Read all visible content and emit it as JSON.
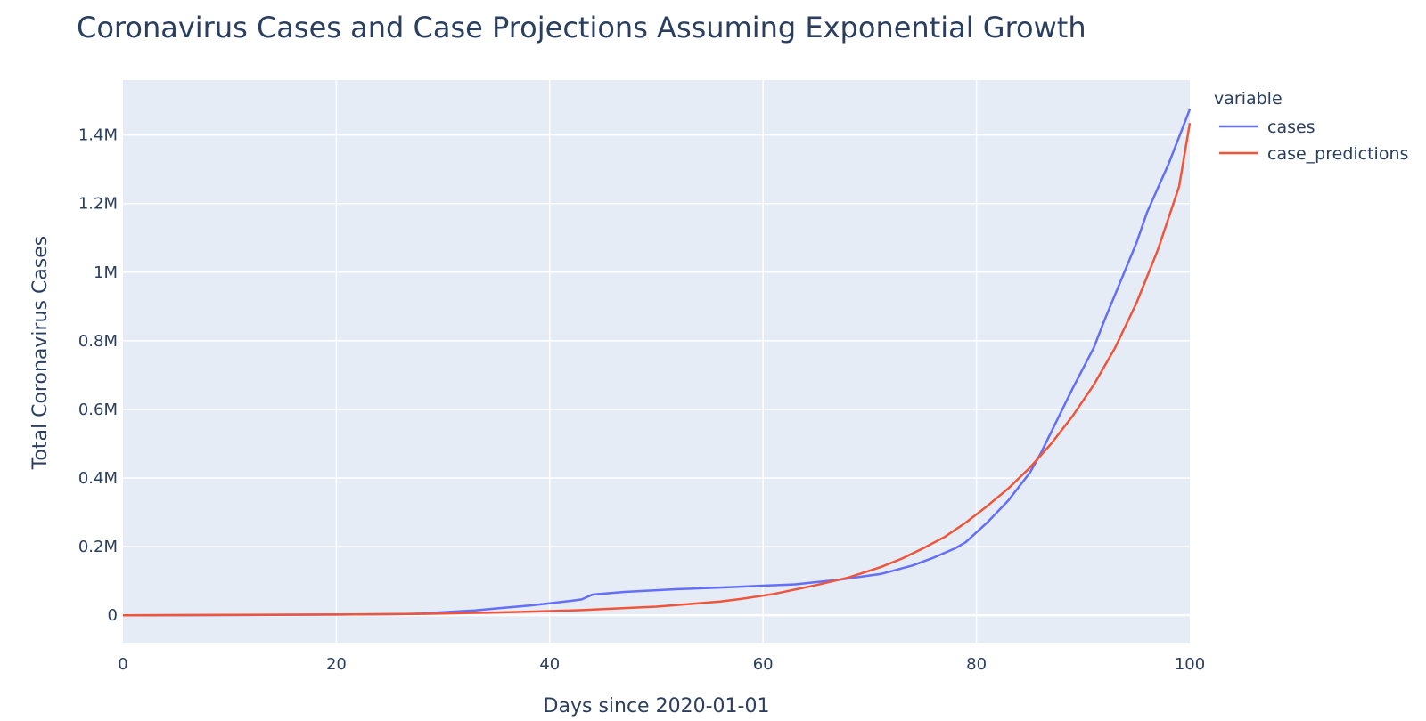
{
  "chart_data": {
    "type": "line",
    "title": "Coronavirus Cases and Case Projections Assuming Exponential Growth",
    "xlabel": "Days since 2020-01-01",
    "ylabel": "Total Coronavirus Cases",
    "xlim": [
      0,
      100
    ],
    "ylim": [
      -80000,
      1560000
    ],
    "x_ticks": [
      {
        "value": 0,
        "label": "0"
      },
      {
        "value": 20,
        "label": "20"
      },
      {
        "value": 40,
        "label": "40"
      },
      {
        "value": 60,
        "label": "60"
      },
      {
        "value": 80,
        "label": "80"
      },
      {
        "value": 100,
        "label": "100"
      }
    ],
    "y_ticks": [
      {
        "value": 0,
        "label": "0"
      },
      {
        "value": 200000,
        "label": "0.2M"
      },
      {
        "value": 400000,
        "label": "0.4M"
      },
      {
        "value": 600000,
        "label": "0.6M"
      },
      {
        "value": 800000,
        "label": "0.8M"
      },
      {
        "value": 1000000,
        "label": "1M"
      },
      {
        "value": 1200000,
        "label": "1.2M"
      },
      {
        "value": 1400000,
        "label": "1.4M"
      }
    ],
    "grid": true,
    "legend": {
      "title": "variable",
      "placement": "top-right-outside"
    },
    "series": [
      {
        "name": "cases",
        "color": "#636efa",
        "points": [
          [
            0,
            0
          ],
          [
            10,
            500
          ],
          [
            20,
            2000
          ],
          [
            25,
            3000
          ],
          [
            27,
            4000
          ],
          [
            28,
            5000
          ],
          [
            30,
            9000
          ],
          [
            33,
            14000
          ],
          [
            35,
            20000
          ],
          [
            38,
            28000
          ],
          [
            40,
            35000
          ],
          [
            42,
            42000
          ],
          [
            43,
            46000
          ],
          [
            44,
            60000
          ],
          [
            47,
            68000
          ],
          [
            52,
            76000
          ],
          [
            57,
            82000
          ],
          [
            60,
            86000
          ],
          [
            63,
            90000
          ],
          [
            67,
            103000
          ],
          [
            71,
            120000
          ],
          [
            72,
            128000
          ],
          [
            74,
            145000
          ],
          [
            76,
            168000
          ],
          [
            78,
            195000
          ],
          [
            79,
            213000
          ],
          [
            81,
            270000
          ],
          [
            83,
            335000
          ],
          [
            85,
            415000
          ],
          [
            86,
            470000
          ],
          [
            89,
            660000
          ],
          [
            91,
            780000
          ],
          [
            92,
            860000
          ],
          [
            95,
            1085000
          ],
          [
            96,
            1175000
          ],
          [
            98,
            1315000
          ],
          [
            100,
            1475000
          ]
        ]
      },
      {
        "name": "case_predictions",
        "color": "#ef553b",
        "points": [
          [
            0,
            0
          ],
          [
            10,
            1000
          ],
          [
            20,
            2000
          ],
          [
            28,
            4000
          ],
          [
            30,
            5000
          ],
          [
            35,
            8000
          ],
          [
            40,
            12000
          ],
          [
            43,
            15000
          ],
          [
            45,
            18000
          ],
          [
            50,
            25000
          ],
          [
            52,
            30000
          ],
          [
            56,
            40000
          ],
          [
            58,
            48000
          ],
          [
            61,
            62000
          ],
          [
            63,
            75000
          ],
          [
            65,
            88000
          ],
          [
            68,
            110000
          ],
          [
            71,
            140000
          ],
          [
            73,
            165000
          ],
          [
            75,
            195000
          ],
          [
            77,
            228000
          ],
          [
            79,
            270000
          ],
          [
            81,
            318000
          ],
          [
            83,
            370000
          ],
          [
            85,
            430000
          ],
          [
            87,
            500000
          ],
          [
            89,
            580000
          ],
          [
            91,
            672000
          ],
          [
            93,
            780000
          ],
          [
            95,
            910000
          ],
          [
            97,
            1065000
          ],
          [
            99,
            1250000
          ],
          [
            100,
            1435000
          ]
        ]
      }
    ]
  }
}
